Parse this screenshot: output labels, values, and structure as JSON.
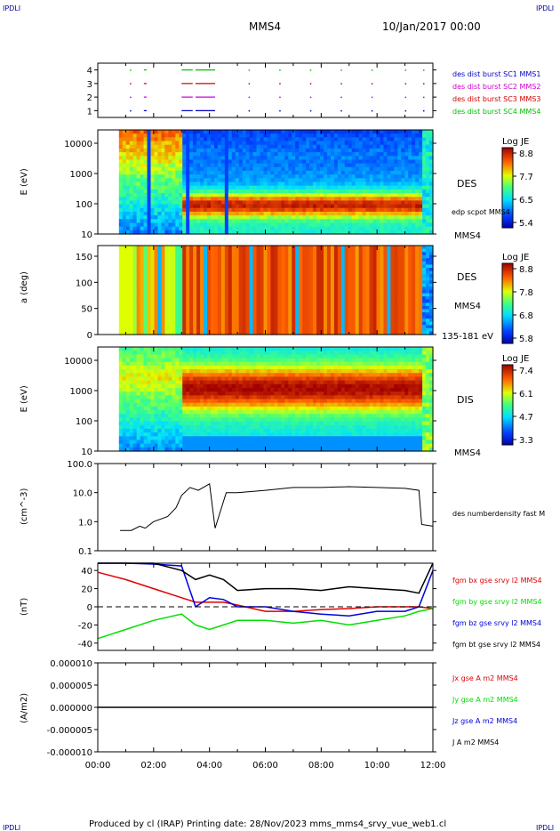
{
  "header": {
    "logo_left": "IPDLI",
    "logo_right": "IPDLI",
    "title": "MMS4",
    "date": "10/Jan/2017 00:00",
    "footer": "Produced by cl (IRAP)   Printing date: 28/Nov/2023   mms_mms4_srvy_vue_web1.cl",
    "footer_logo_left": "IPDLI",
    "footer_logo_right": "IPDLI"
  },
  "colors": {
    "mms1": "#0000c8",
    "mms2": "#d000d0",
    "mms3": "#d00000",
    "mms4": "#00c000",
    "bx": "#e00000",
    "by": "#00e000",
    "bz": "#0000e0",
    "bt": "#000000"
  },
  "chart_data": [
    {
      "type": "scatter",
      "panel": "burst",
      "yticks": [
        "4",
        "3",
        "2",
        "1"
      ],
      "ylim": [
        0.5,
        4.5
      ],
      "legend": [
        "des dist burst SC1 MMS1",
        "des dist burst SC2 MMS2",
        "des dist burst SC3 MMS3",
        "des dist burst SC4 MMS4"
      ],
      "series": [
        {
          "y": 4,
          "segments": [
            [
              1.65,
              1.75
            ],
            [
              3.0,
              3.4
            ],
            [
              3.5,
              4.2
            ]
          ]
        },
        {
          "y": 3,
          "segments": [
            [
              1.65,
              1.75
            ],
            [
              3.0,
              3.4
            ],
            [
              3.5,
              4.2
            ]
          ]
        },
        {
          "y": 2,
          "segments": [
            [
              1.65,
              1.75
            ],
            [
              3.0,
              3.4
            ],
            [
              3.5,
              4.2
            ]
          ]
        },
        {
          "y": 1,
          "segments": [
            [
              1.65,
              1.75
            ],
            [
              3.0,
              3.4
            ],
            [
              3.5,
              4.2
            ]
          ]
        }
      ],
      "dot_times": [
        1.15,
        5.4,
        6.5,
        7.6,
        8.7,
        9.8,
        11.0,
        11.65
      ]
    },
    {
      "type": "heatmap",
      "panel": "des-energy",
      "ylabel": "E (eV)",
      "yticks": [
        "10000",
        "1000",
        "100",
        "10"
      ],
      "yscale": "log",
      "ylim": [
        10,
        30000
      ],
      "label": "DES",
      "sublabel": "edp scpot MMS4",
      "spacecraft": "MMS4",
      "colorbar": {
        "title": "Log JE",
        "ticks": [
          "8.8",
          "7.7",
          "6.5",
          "5.4"
        ],
        "range": [
          5.4,
          8.8
        ]
      }
    },
    {
      "type": "heatmap",
      "panel": "des-pitch",
      "ylabel": "a (deg)",
      "yticks": [
        "150",
        "100",
        "50",
        "0"
      ],
      "ylim": [
        0,
        180
      ],
      "label": "DES",
      "spacecraft": "MMS4",
      "energy_range": "135-181 eV",
      "colorbar": {
        "title": "Log JE",
        "ticks": [
          "8.8",
          "7.8",
          "6.8",
          "5.8"
        ],
        "range": [
          5.8,
          8.8
        ]
      }
    },
    {
      "type": "heatmap",
      "panel": "dis-energy",
      "ylabel": "E (eV)",
      "yticks": [
        "10000",
        "1000",
        "100",
        "10"
      ],
      "yscale": "log",
      "ylim": [
        10,
        30000
      ],
      "label": "DIS",
      "spacecraft": "MMS4",
      "colorbar": {
        "title": "Log JE",
        "ticks": [
          "7.4",
          "6.1",
          "4.7",
          "3.3"
        ],
        "range": [
          3.3,
          7.4
        ]
      }
    },
    {
      "type": "line",
      "panel": "density",
      "ylabel": "(cm^-3)",
      "yscale": "log",
      "yticks": [
        "100.0",
        "10.0",
        "1.0",
        "0.1"
      ],
      "ylim": [
        0.1,
        100
      ],
      "legend": [
        "des numberdensity fast M"
      ],
      "x": [
        0.8,
        1.2,
        1.5,
        1.7,
        2.0,
        2.5,
        2.8,
        3.0,
        3.3,
        3.6,
        4.0,
        4.2,
        4.6,
        5.0,
        6.0,
        7.0,
        8.0,
        9.0,
        10.0,
        11.0,
        11.5,
        11.6,
        12.0
      ],
      "values": [
        0.5,
        0.5,
        0.7,
        0.6,
        1.0,
        1.5,
        3.0,
        8.0,
        15.0,
        12.0,
        20.0,
        0.6,
        10.0,
        10.0,
        12.0,
        15.0,
        15.0,
        16.0,
        15.0,
        14.0,
        12.0,
        0.8,
        0.7
      ]
    },
    {
      "type": "line",
      "panel": "field",
      "ylabel": "(nT)",
      "yticks": [
        "40",
        "20",
        "0",
        "-20",
        "-40"
      ],
      "ylim": [
        -48,
        48
      ],
      "legend": [
        "fgm bx gse srvy l2 MMS4",
        "fgm by gse srvy l2 MMS4",
        "fgm bz gse srvy l2 MMS4",
        "fgm bt gse srvy l2 MMS4"
      ],
      "x": [
        0,
        1,
        2,
        3,
        3.5,
        4,
        4.5,
        5,
        6,
        7,
        8,
        9,
        10,
        11,
        11.5,
        12
      ],
      "series": [
        {
          "name": "fgm bx gse srvy l2 MMS4",
          "values": [
            38,
            30,
            20,
            10,
            5,
            5,
            5,
            2,
            -5,
            -5,
            -3,
            -2,
            0,
            0,
            0,
            -2
          ]
        },
        {
          "name": "fgm by gse srvy l2 MMS4",
          "values": [
            -35,
            -25,
            -15,
            -8,
            -20,
            -25,
            -20,
            -15,
            -15,
            -18,
            -15,
            -20,
            -15,
            -10,
            -5,
            -2
          ]
        },
        {
          "name": "fgm bz gse srvy l2 MMS4",
          "values": [
            48,
            48,
            47,
            45,
            0,
            10,
            8,
            0,
            0,
            -5,
            -8,
            -10,
            -5,
            -5,
            0,
            40
          ]
        },
        {
          "name": "fgm bt gse srvy l2 MMS4",
          "values": [
            48,
            48,
            48,
            40,
            30,
            35,
            30,
            18,
            20,
            20,
            18,
            22,
            20,
            18,
            15,
            48
          ]
        }
      ]
    },
    {
      "type": "line",
      "panel": "current",
      "ylabel": "(A/m2)",
      "yticks": [
        "0.000010",
        "0.000005",
        "0.000000",
        "-0.000005",
        "-0.000010"
      ],
      "ylim": [
        -1e-05,
        1e-05
      ],
      "legend": [
        "Jx gse A m2 MMS4",
        "Jy gse A m2 MMS4",
        "Jz gse A m2 MMS4",
        "J A m2 MMS4"
      ],
      "series_level": 0
    }
  ],
  "xaxis": {
    "ticks": [
      "00:00",
      "02:00",
      "04:00",
      "06:00",
      "08:00",
      "10:00",
      "12:00"
    ],
    "xlim": [
      0,
      12
    ]
  }
}
